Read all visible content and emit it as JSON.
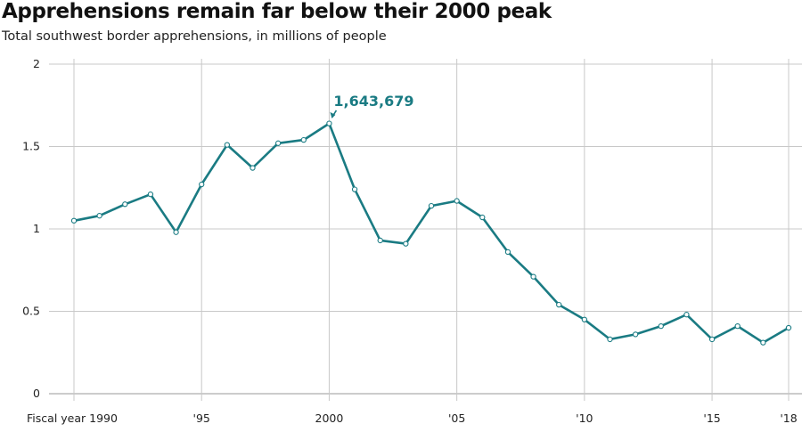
{
  "chart_data": {
    "type": "line",
    "title": "Apprehensions remain far below their 2000 peak",
    "subtitle": "Total southwest border apprehensions, in millions of people",
    "xlabel": "",
    "ylabel": "",
    "xlim": [
      1990,
      2018
    ],
    "ylim": [
      0,
      2
    ],
    "yticks": [
      0,
      0.5,
      1,
      1.5,
      2
    ],
    "ytick_labels": [
      "0",
      "0.5",
      "1",
      "1.5",
      "2"
    ],
    "xticks": [
      1990,
      1995,
      2000,
      2005,
      2010,
      2015,
      2018
    ],
    "xtick_labels": [
      "Fiscal year 1990",
      "'95",
      "2000",
      "'05",
      "'10",
      "'15",
      "'18"
    ],
    "grid": true,
    "series": [
      {
        "name": "Southwest border apprehensions",
        "color": "#1a7b83",
        "x": [
          1990,
          1991,
          1992,
          1993,
          1994,
          1995,
          1996,
          1997,
          1998,
          1999,
          2000,
          2001,
          2002,
          2003,
          2004,
          2005,
          2006,
          2007,
          2008,
          2009,
          2010,
          2011,
          2012,
          2013,
          2014,
          2015,
          2016,
          2017,
          2018
        ],
        "values": [
          1.05,
          1.08,
          1.15,
          1.21,
          0.98,
          1.27,
          1.51,
          1.37,
          1.52,
          1.54,
          1.64,
          1.24,
          0.93,
          0.91,
          1.14,
          1.17,
          1.07,
          0.86,
          0.71,
          0.54,
          0.45,
          0.33,
          0.36,
          0.41,
          0.48,
          0.33,
          0.41,
          0.31,
          0.4
        ]
      }
    ],
    "annotations": [
      {
        "x": 2000,
        "y": 1.643679,
        "text": "1,643,679"
      }
    ]
  }
}
